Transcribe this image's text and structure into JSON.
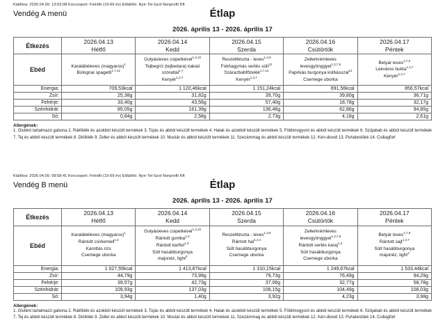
{
  "sections": [
    {
      "meta": "Kiállítva: 2026.04.09. 13:53:08 Korcsoport: Felnőtt (19-69 év) Előállító: Nyír-Tel-Szol Nonprofit Kft",
      "menu_name": "Vendég A menü",
      "title": "Étlap",
      "date_range": "2026. április 13 - 2026. április 17",
      "table": {
        "meal_col_header": "Étkezés",
        "meal_row_label": "Ebéd",
        "days": [
          {
            "date": "2026.04.13",
            "day": "Hétfő"
          },
          {
            "date": "2026.04.14",
            "day": "Kedd"
          },
          {
            "date": "2026.04.15",
            "day": "Szerda"
          },
          {
            "date": "2026.04.16",
            "day": "Csütörtök"
          },
          {
            "date": "2026.04.17",
            "day": "Péntek"
          }
        ],
        "menus": [
          [
            "Karalábéleves (magyaros)^{1}",
            "Bolognai spagetti^{1,7,12}"
          ],
          [
            "Gulyásleves csipetkével^{1,3,10}",
            "Tejbegríz (tejbedara) kakaó szórattal^{1,7}",
            "Kenyér^{1,3,7}"
          ],
          [
            "Reszelttészta - leves^{1,3,9}",
            "Fokhagymás sertés sült^{12}",
            "Szárazbabfőzelék^{1,7,12}",
            "Kenyér^{1,3,7}"
          ],
          [
            "Zellerkrémleves levesgyönggyel^{1,3,7,9}",
            "Paprikás burgonya kolbásszal^{12}",
            "Csemege uborka"
          ],
          [
            "Betyár leves^{1,7,9}",
            "Lekváros bukta^{1,3,7}",
            "Kenyér^{1,3,7}"
          ]
        ],
        "nutrition": [
          {
            "label": "Energia:",
            "values": [
              "709,53kcal",
              "1 120,46kcal",
              "1 151,24kcal",
              "691,56kcal",
              "856,57kcal"
            ]
          },
          {
            "label": "Zsír:",
            "values": [
              "25,38g",
              "31,82g",
              "39,70g",
              "39,80g",
              "36,71g"
            ]
          },
          {
            "label": "Fehérje:",
            "values": [
              "33,40g",
              "43,56g",
              "57,40g",
              "18,78g",
              "32,17g"
            ]
          },
          {
            "label": "Szénhidrát:",
            "values": [
              "85,05g",
              "161,39g",
              "136,46g",
              "62,86g",
              "94,85g"
            ]
          },
          {
            "label": "Só:",
            "values": [
              "0,84g",
              "2,58g",
              "2,73g",
              "4,18g",
              "2,61g"
            ]
          }
        ]
      },
      "allergens_title": "Allergének:",
      "allergens_text": "1. Glutént tartalmazó gabona 2. Rákfélék és azokból készült termékek 3. Tojás és abból készült termékek 4. Halak és azokból készült termékek 5. Földimogyoró és abból készült termékek 6. Szójabab és abból készült termékek 7. Tej és abból készült termékek 8. Diófélék 9. Zeller és abból készült termékek 10. Mustár és abból készült termékek 11. Szezámmag és abból készült termékek 12. Kén-dioxid 13. Puhatestűek 14. Csillagfürt"
    },
    {
      "meta": "Kiállítva: 2026.04.09. 08:58:41 Korcsoport: Felnőtt (19-69 év) Előállító: Nyír-Tel-Szol Nonprofit Kft",
      "menu_name": "Vendég B menü",
      "title": "Étlap",
      "date_range": "2026. április 13 - 2026. április 17",
      "table": {
        "meal_col_header": "Étkezés",
        "meal_row_label": "Ebéd",
        "days": [
          {
            "date": "2026.04.13",
            "day": "Hétfő"
          },
          {
            "date": "2026.04.14",
            "day": "Kedd"
          },
          {
            "date": "2026.04.15",
            "day": "Szerda"
          },
          {
            "date": "2026.04.16",
            "day": "Csütörtök"
          },
          {
            "date": "2026.04.17",
            "day": "Péntek"
          }
        ],
        "menus": [
          [
            "Karalábéleves (magyaros)^{1}",
            "Rántott csirkemell^{1,3}",
            "Karottás rizs",
            "Csemege uborka"
          ],
          [
            "Gulyásleves csipetkével^{1,3,10}",
            "Rántott gomba^{1,3}",
            "Rántott karfiol^{1,3}",
            "Sült hasábburgonya",
            "majonéz, light^{3}"
          ],
          [
            "Reszelttészta - leves^{1,3,9}",
            "Rántott hal^{1,3,4}",
            "Sült hasábburgonya",
            "Csemege uborka"
          ],
          [
            "Zellerkrémleves levesgyönggyel^{1,3,7,9}",
            "Rántott sertés karaj^{1,3}",
            "Sült hasábburgonya",
            "Csemege uborka"
          ],
          [
            "Betyár leves^{1,7,9}",
            "Rántott sajt^{1,3,7}",
            "Sült hasábburgonya",
            "majonéz, light^{3}"
          ]
        ],
        "nutrition": [
          {
            "label": "Energia:",
            "values": [
              "1 027,55kcal",
              "1 413,87kcal",
              "1 310,15kcal",
              "1 249,67kcal",
              "1 533,44kcal"
            ]
          },
          {
            "label": "Zsír:",
            "values": [
              "44,79g",
              "73,99g",
              "79,73g",
              "76,49g",
              "94,29g"
            ]
          },
          {
            "label": "Fehérje:",
            "values": [
              "39,57g",
              "42,73g",
              "37,06g",
              "32,77g",
              "58,78g"
            ]
          },
          {
            "label": "Szénhidrát:",
            "values": [
              "109,93g",
              "137,03g",
              "108,15g",
              "104,49g",
              "108,03g"
            ]
          },
          {
            "label": "Só:",
            "values": [
              "3,94g",
              "1,40g",
              "3,92g",
              "4,23g",
              "3,98g"
            ]
          }
        ]
      },
      "allergens_title": "Allergének:",
      "allergens_text": "1. Glutént tartalmazó gabona 2. Rákfélék és azokból készült termékek 3. Tojás és abból készült termékek 4. Halak és azokból készült termékek 5. Földimogyoró és abból készült termékek 6. Szójabab és abból készült termékek 7. Tej és abból készült termékek 8. Diófélék 9. Zeller és abból készült termékek 10. Mustár és abból készült termékek 11. Szezámmag és abból készült termékek 12. Kén-dioxid 13. Puhatestűek 14. Csillagfürt"
    }
  ]
}
